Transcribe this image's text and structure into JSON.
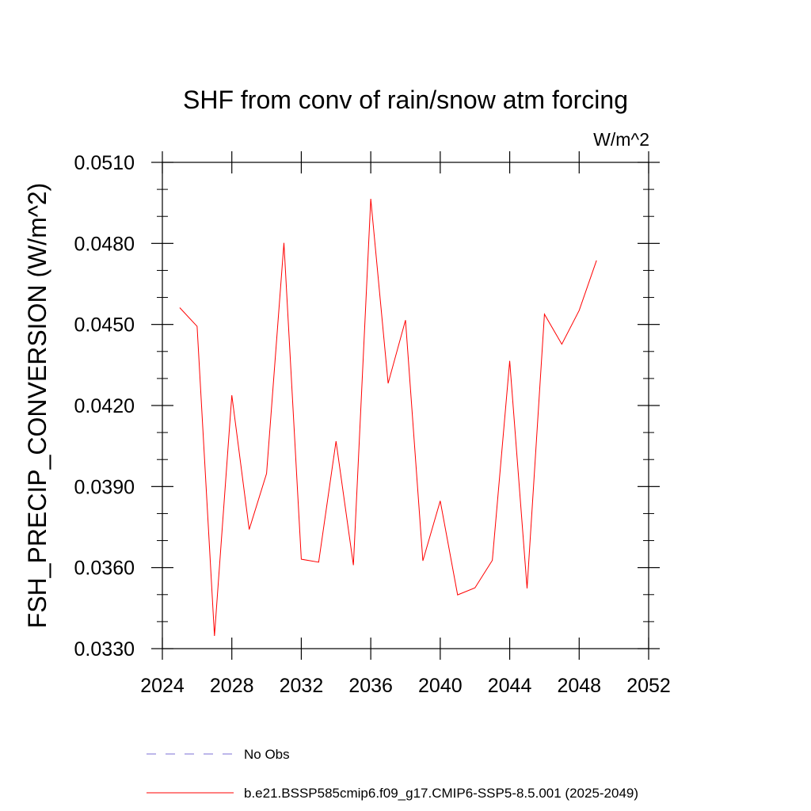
{
  "chart_data": {
    "type": "line",
    "title": "SHF from conv of rain/snow atm forcing",
    "units": "W/m^2",
    "ylabel": "FSH_PRECIP_CONVERSION  (W/m^2)",
    "xlabel": "",
    "xlim": [
      2024,
      2052
    ],
    "ylim": [
      0.033,
      0.051
    ],
    "xticks": [
      "2024",
      "2028",
      "2032",
      "2036",
      "2040",
      "2044",
      "2048",
      "2052"
    ],
    "yticks": [
      "0.0330",
      "0.0360",
      "0.0390",
      "0.0420",
      "0.0450",
      "0.0480",
      "0.0510"
    ],
    "grid": false,
    "legend_position": "bottom",
    "series": [
      {
        "name": "b.e21.BSSP585cmip6.f09_g17.CMIP6-SSP5-8.5.001 (2025-2049)",
        "color": "#ff0000",
        "dash": "solid",
        "x": [
          2025,
          2026,
          2027,
          2028,
          2029,
          2030,
          2031,
          2032,
          2033,
          2034,
          2035,
          2036,
          2037,
          2038,
          2039,
          2040,
          2041,
          2042,
          2043,
          2044,
          2045,
          2046,
          2047,
          2048,
          2049
        ],
        "y": [
          0.04562,
          0.04493,
          0.03347,
          0.04238,
          0.03741,
          0.03948,
          0.04802,
          0.03631,
          0.0362,
          0.04068,
          0.03609,
          0.04965,
          0.04282,
          0.04516,
          0.03625,
          0.03847,
          0.03499,
          0.03525,
          0.03627,
          0.04365,
          0.03523,
          0.04538,
          0.04427,
          0.04552,
          0.04737
        ]
      }
    ],
    "legend": [
      {
        "label": "No Obs",
        "color": "#7b6fd6",
        "dash": "dashed"
      },
      {
        "label": "b.e21.BSSP585cmip6.f09_g17.CMIP6-SSP5-8.5.001 (2025-2049)",
        "color": "#ff0000",
        "dash": "solid"
      }
    ]
  }
}
